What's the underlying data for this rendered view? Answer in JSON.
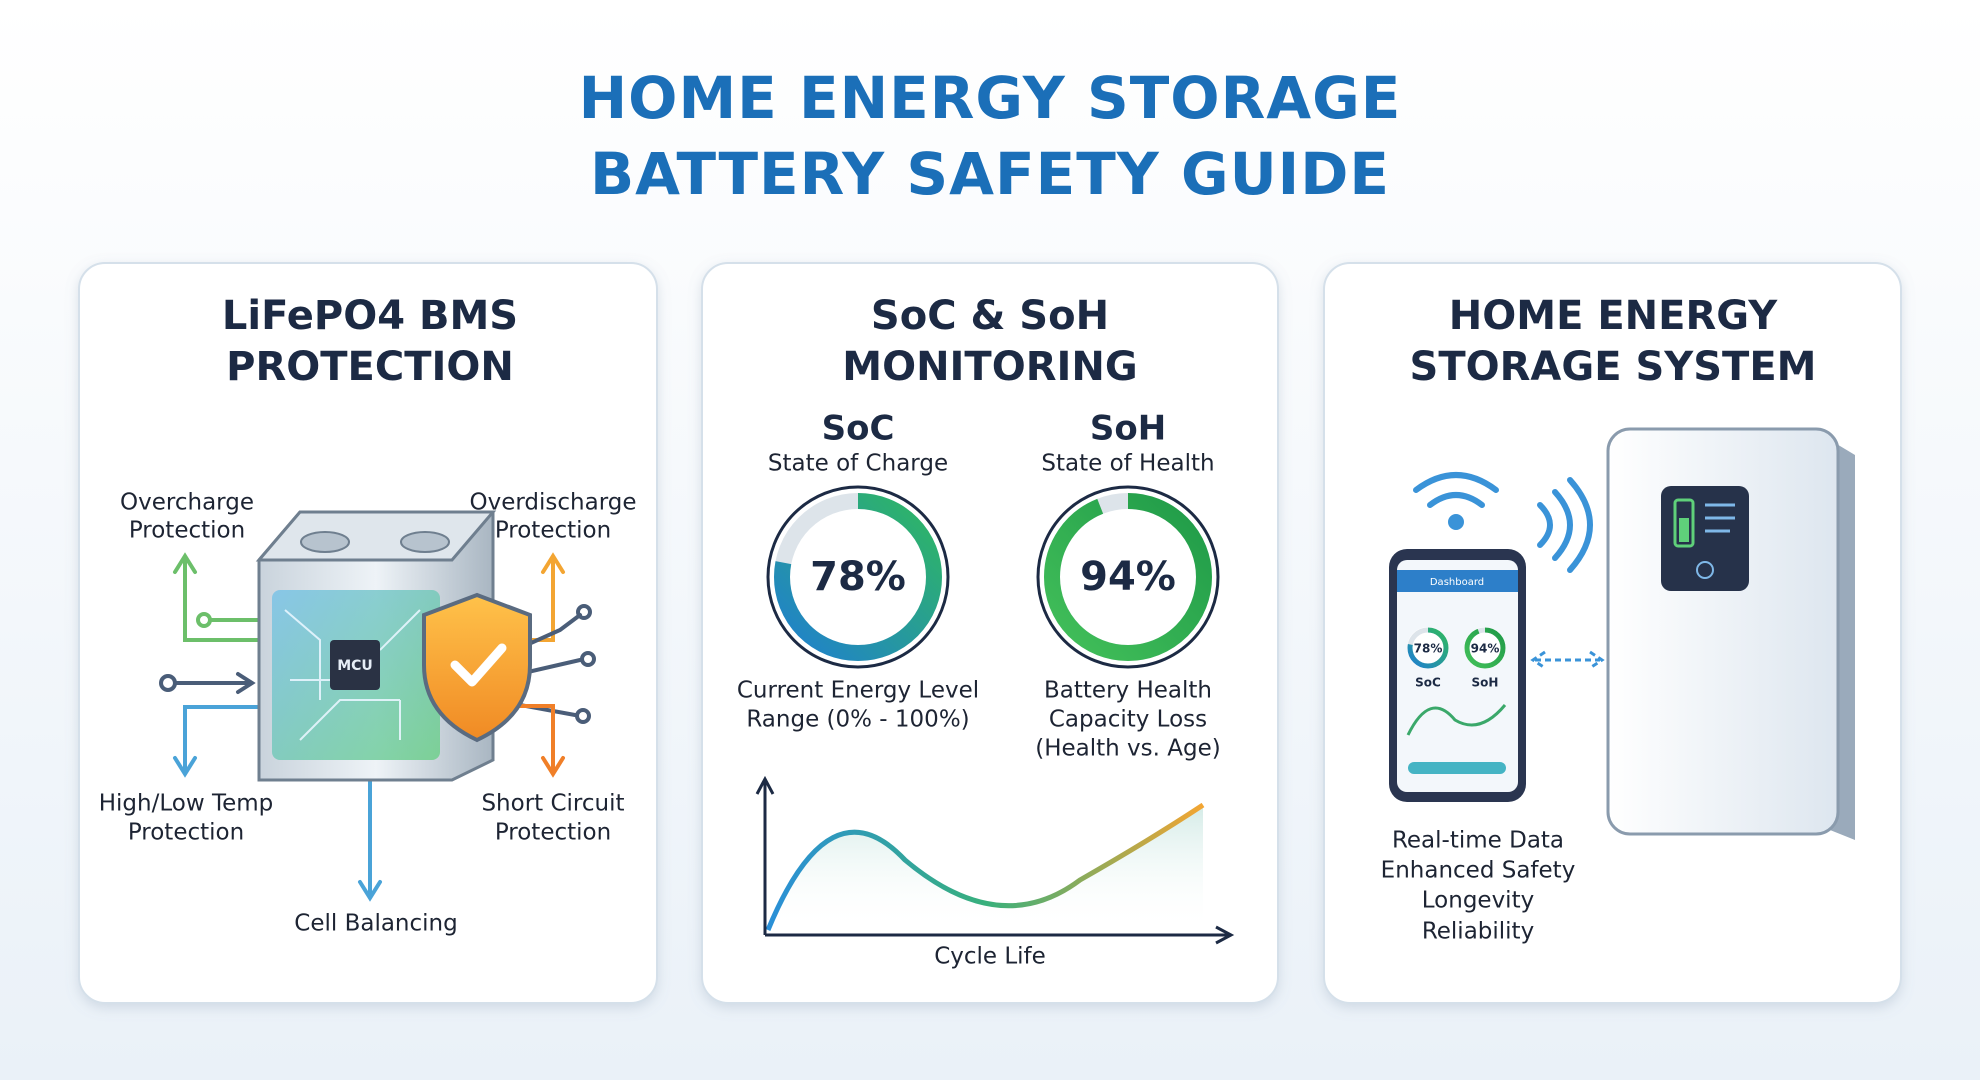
{
  "title": {
    "lines": [
      "HOME ENERGY STORAGE",
      "BATTERY SAFETY GUIDE"
    ]
  },
  "panels": [
    {
      "title": [
        "LiFePO4 BMS",
        "PROTECTION"
      ],
      "chip": "MCU",
      "callouts": [
        [
          "Overcharge",
          "Protection"
        ],
        [
          "Overdischarge",
          "Protection"
        ],
        [
          "High/Low Temp",
          "Protection"
        ],
        [
          "Short Circuit",
          "Protection"
        ],
        [
          "Cell Balancing"
        ]
      ]
    },
    {
      "title": [
        "SoC & SoH",
        "MONITORING"
      ],
      "gauges": [
        {
          "name": "SoC",
          "subtitle": "State of Charge",
          "value": 78,
          "label": "78%",
          "color": "url(#socGrad)",
          "notes": [
            "Current Energy Level",
            "Range (0% - 100%)"
          ]
        },
        {
          "name": "SoH",
          "subtitle": "State of Health",
          "value": 94,
          "label": "94%",
          "color": "url(#sohGrad)",
          "notes": [
            "Battery Health",
            "Capacity Loss",
            "(Health vs. Age)"
          ]
        }
      ],
      "chart_axis_label": "Cycle Life"
    },
    {
      "title": [
        "HOME ENERGY",
        "STORAGE SYSTEM"
      ],
      "app_header": "Dashboard",
      "benefits": [
        "Real-time Data",
        "Enhanced Safety",
        "Longevity",
        "Reliability"
      ]
    }
  ]
}
